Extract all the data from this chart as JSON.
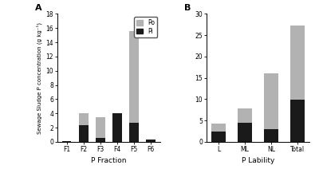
{
  "panel_A": {
    "categories": [
      "F1",
      "F2",
      "F3",
      "F4",
      "F5",
      "F6"
    ],
    "Pi": [
      0.1,
      2.3,
      0.5,
      4.0,
      2.7,
      0.3
    ],
    "Po": [
      0.05,
      1.7,
      3.0,
      0.0,
      12.9,
      0.0
    ],
    "ylim": [
      0,
      18
    ],
    "yticks": [
      0,
      2,
      4,
      6,
      8,
      10,
      12,
      14,
      16,
      18
    ],
    "xlabel": "P Fraction",
    "ylabel": "Sewage Sludge P concentration (g kg⁻¹)",
    "label": "A"
  },
  "panel_B": {
    "categories": [
      "L",
      "ML",
      "NL",
      "Total"
    ],
    "Pi": [
      2.5,
      4.5,
      3.0,
      9.8
    ],
    "Po": [
      1.7,
      3.3,
      13.0,
      17.5
    ],
    "ylim": [
      0,
      30
    ],
    "yticks": [
      0,
      5,
      10,
      15,
      20,
      25,
      30
    ],
    "xlabel": "P Lability",
    "ylabel": "",
    "label": "B"
  },
  "color_Po": "#b2b2b2",
  "color_Pi": "#1a1a1a",
  "bar_width": 0.55,
  "background_color": "#ffffff"
}
